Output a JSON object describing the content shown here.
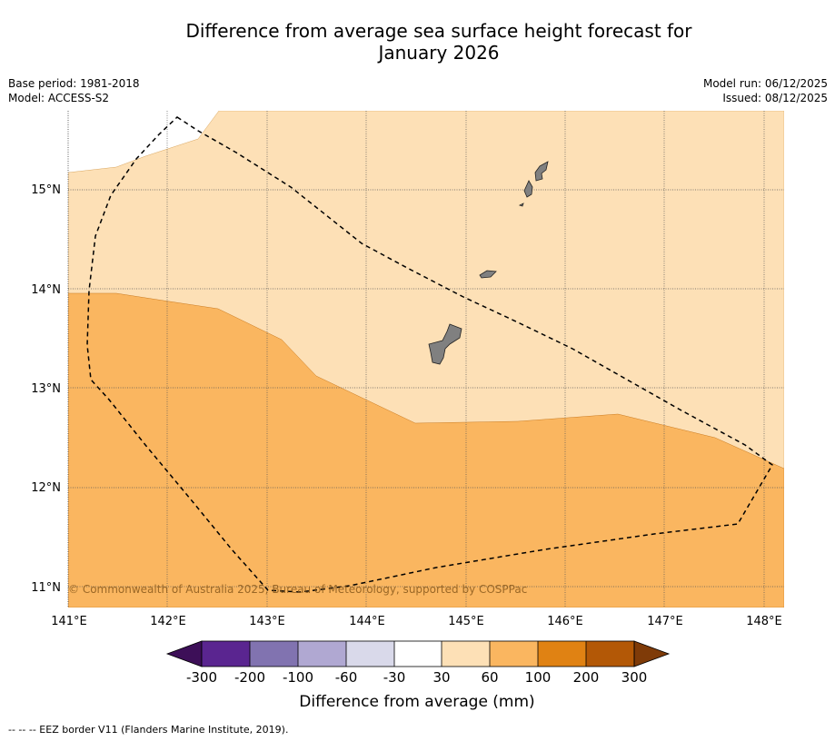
{
  "title": {
    "line1": "Difference from average sea surface height forecast for",
    "line2": "January 2026"
  },
  "meta": {
    "base_period": "Base period: 1981-2018",
    "model": "Model: ACCESS-S2",
    "model_run": "Model run: 06/12/2025",
    "issued": "Issued: 08/12/2025"
  },
  "axes": {
    "lon_labels": [
      "141°E",
      "142°E",
      "143°E",
      "144°E",
      "145°E",
      "146°E",
      "147°E",
      "148°E"
    ],
    "lat_labels": [
      "15°N",
      "14°N",
      "13°N",
      "12°N",
      "11°N"
    ]
  },
  "copyright": "© Commonwealth of Australia 2025, Bureau of Meteorology, supported by COSPPac",
  "colorbar": {
    "labels": [
      "-300",
      "-200",
      "-100",
      "-60",
      "-30",
      "30",
      "60",
      "100",
      "200",
      "300"
    ],
    "colors": [
      "#3d0f58",
      "#5a2590",
      "#8173b0",
      "#b0a8d2",
      "#d9d9ea",
      "#ffffff",
      "#fde0b6",
      "#fab660",
      "#e08213",
      "#b35806",
      "#7f3b08"
    ],
    "title": "Difference from average (mm)"
  },
  "map_colors": {
    "band_30_60": "#fde0b6",
    "band_60_100": "#fab660",
    "land": "#808080"
  },
  "footer": "--  --  -- EEZ border V11 (Flanders Marine Institute, 2019)."
}
